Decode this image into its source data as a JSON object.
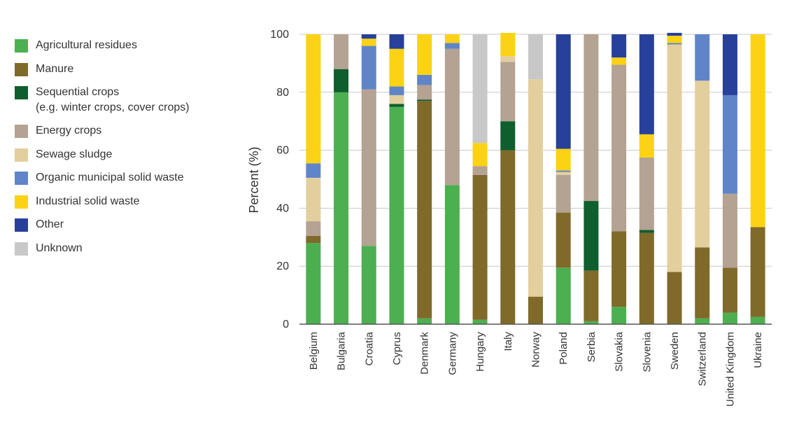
{
  "chart_data": {
    "type": "bar",
    "stacked": true,
    "title": "",
    "xlabel": "",
    "ylabel": "Percent (%)",
    "ylim": [
      0,
      100
    ],
    "yticks": [
      0,
      20,
      40,
      60,
      80,
      100
    ],
    "grid": true,
    "legend_position": "left",
    "categories": [
      "Belgium",
      "Bulgaria",
      "Croatia",
      "Cyprus",
      "Denmark",
      "Germany",
      "Hungary",
      "Italy",
      "Norway",
      "Poland",
      "Serbia",
      "Slovakia",
      "Slovenia",
      "Sweden",
      "Switzerland",
      "United Kingdom",
      "Ukraine"
    ],
    "series": [
      {
        "name": "Agricultural residues",
        "color": "#4caf50",
        "values": [
          28,
          80,
          27,
          75,
          2,
          48,
          1.5,
          0,
          0,
          19.5,
          1,
          6,
          0,
          0,
          2,
          4,
          2.5
        ]
      },
      {
        "name": "Manure",
        "color": "#7f6a2a",
        "values": [
          2.5,
          0,
          0,
          0,
          75,
          0,
          50,
          60,
          9.5,
          19,
          17.5,
          26,
          31.5,
          18,
          24.5,
          15.5,
          31
        ]
      },
      {
        "name": "Sequential crops\n(e.g. winter crops, cover crops)",
        "color": "#0f5e2e",
        "values": [
          0,
          8,
          0,
          1,
          0.5,
          0,
          0,
          10,
          0,
          0,
          24,
          0,
          1,
          0,
          0,
          0,
          0
        ]
      },
      {
        "name": "Energy crops",
        "color": "#b4a292",
        "values": [
          5,
          12,
          54,
          0,
          5,
          47,
          3,
          20.5,
          0,
          13,
          57.5,
          57.5,
          25,
          0,
          0,
          25.5,
          0
        ]
      },
      {
        "name": "Sewage sludge",
        "color": "#e3cf9e",
        "values": [
          15,
          0,
          0,
          3,
          0,
          0,
          0,
          2,
          75,
          1,
          0,
          0,
          0,
          78.5,
          57.5,
          0,
          0
        ]
      },
      {
        "name": "Organic municipal solid waste",
        "color": "#5f85c8",
        "values": [
          5,
          0,
          15,
          3,
          3.5,
          2,
          0,
          0,
          0,
          0.5,
          0,
          0,
          0,
          0.5,
          16,
          34,
          0
        ]
      },
      {
        "name": "Industrial solid waste",
        "color": "#fcd214",
        "values": [
          44.5,
          0,
          2.5,
          13,
          14,
          3,
          8,
          8,
          0,
          7.5,
          0,
          2.5,
          8,
          2.5,
          0,
          0,
          66.5
        ]
      },
      {
        "name": "Other",
        "color": "#27409a",
        "values": [
          0,
          0,
          1.5,
          5,
          0,
          0,
          0,
          0,
          0,
          39.5,
          0,
          8,
          34.5,
          1,
          0,
          21,
          0
        ]
      },
      {
        "name": "Unknown",
        "color": "#c8c8c8",
        "values": [
          0,
          0,
          0,
          0,
          0,
          0,
          37.5,
          0,
          15.5,
          0,
          0,
          0,
          0,
          0,
          0,
          0,
          0
        ]
      }
    ]
  }
}
